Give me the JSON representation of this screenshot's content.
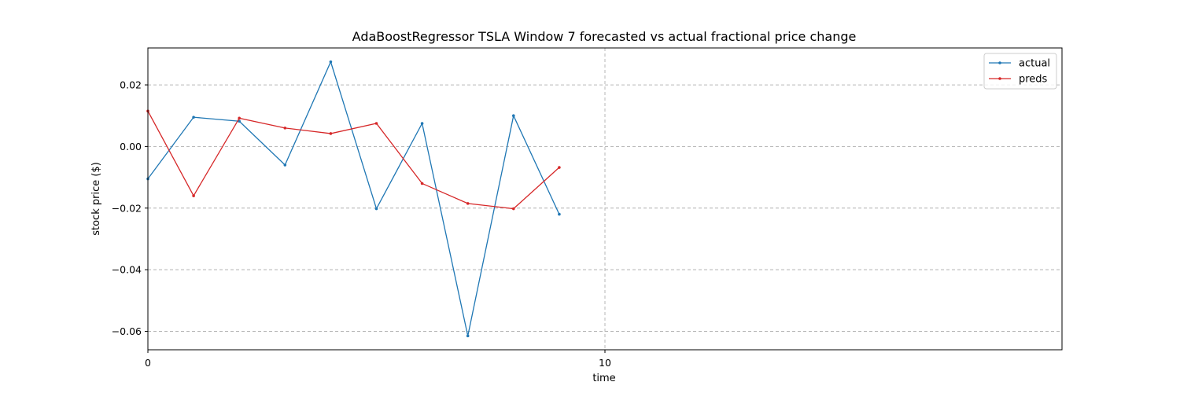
{
  "chart_data": {
    "type": "line",
    "title": "AdaBoostRegressor TSLA Window 7 forecasted vs actual fractional price change",
    "xlabel": "time",
    "ylabel": "stock price ($)",
    "xlim": [
      0,
      20
    ],
    "ylim": [
      -0.066,
      0.032
    ],
    "x_ticks": [
      0,
      10
    ],
    "x_tick_labels": [
      "0",
      "10"
    ],
    "y_ticks": [
      0.02,
      0.0,
      -0.02,
      -0.04,
      -0.06
    ],
    "y_tick_labels": [
      "0.02",
      "0.00",
      "−0.02",
      "−0.04",
      "−0.06"
    ],
    "grid": true,
    "legend_position": "top-right",
    "x": [
      0,
      1,
      2,
      3,
      4,
      5,
      6,
      7,
      8,
      9
    ],
    "series": [
      {
        "name": "actual",
        "color": "#1f77b4",
        "values": [
          -0.0105,
          0.0095,
          0.0082,
          -0.006,
          0.0275,
          -0.0202,
          0.0075,
          -0.0615,
          0.01,
          -0.022
        ]
      },
      {
        "name": "preds",
        "color": "#d62728",
        "values": [
          0.0115,
          -0.016,
          0.0092,
          0.006,
          0.0042,
          0.0075,
          -0.012,
          -0.0185,
          -0.0202,
          -0.0068
        ]
      }
    ]
  }
}
